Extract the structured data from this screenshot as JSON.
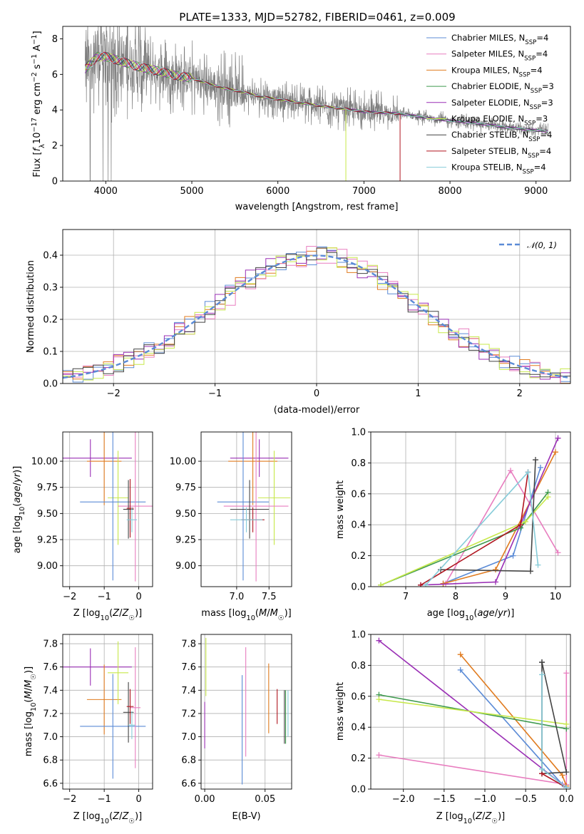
{
  "figure": {
    "title": "PLATE=1333, MJD=52782, FIBERID=0461, z=0.009"
  },
  "colors": {
    "chabrier_miles": "#5b8bd6",
    "salpeter_miles": "#e87dbf",
    "kroupa_miles": "#e07b1f",
    "chabrier_elodie": "#3f9a4f",
    "salpeter_elodie": "#9a2fb5",
    "kroupa_elodie": "#c7e84a",
    "chabrier_stelib": "#444444",
    "salpeter_stelib": "#b0151f",
    "kroupa_stelib": "#86ccd9",
    "data": "#7f7f7f",
    "normal": "#5b8bd6"
  },
  "chart_data": [
    {
      "type": "line",
      "id": "spectrum",
      "title": "PLATE=1333, MJD=52782, FIBERID=0461, z=0.009",
      "xlabel": "wavelength [Angstrom, rest frame]",
      "ylabel": "Flux [f_λ 10^-17 erg cm^-2 s^-1 A^-1]",
      "xlim": [
        3500,
        9400
      ],
      "ylim": [
        0,
        8.7
      ],
      "xticks": [
        4000,
        5000,
        6000,
        7000,
        8000,
        9000
      ],
      "yticks": [
        0,
        2,
        4,
        6,
        8
      ],
      "legend_position": "upper right",
      "data_continuum": {
        "x": [
          3760,
          3900,
          4000,
          4200,
          4400,
          4600,
          4800,
          5000,
          5200,
          5400,
          5600,
          5800,
          6000,
          6200,
          6400,
          6600,
          6800,
          7000,
          7200,
          7400,
          7600,
          7800,
          8000,
          8200,
          8400,
          8600,
          8800,
          9000,
          9140
        ],
        "y": [
          6.3,
          7.0,
          7.0,
          6.7,
          6.4,
          6.2,
          5.95,
          5.8,
          5.45,
          5.2,
          5.0,
          4.75,
          4.6,
          4.45,
          4.3,
          4.15,
          4.05,
          3.9,
          3.85,
          3.8,
          3.65,
          3.5,
          3.4,
          3.3,
          3.2,
          3.05,
          2.95,
          2.85,
          2.8
        ]
      },
      "series": [
        {
          "name": "Chabrier MILES, N_SSP=4",
          "color_key": "chabrier_miles"
        },
        {
          "name": "Salpeter MILES, N_SSP=4",
          "color_key": "salpeter_miles"
        },
        {
          "name": "Kroupa MILES, N_SSP=4",
          "color_key": "kroupa_miles"
        },
        {
          "name": "Chabrier ELODIE, N_SSP=3",
          "color_key": "chabrier_elodie"
        },
        {
          "name": "Salpeter ELODIE, N_SSP=3",
          "color_key": "salpeter_elodie"
        },
        {
          "name": "Kroupa ELODIE, N_SSP=3",
          "color_key": "kroupa_elodie"
        },
        {
          "name": "Chabrier STELIB, N_SSP=4",
          "color_key": "chabrier_stelib"
        },
        {
          "name": "Salpeter STELIB, N_SSP=4",
          "color_key": "salpeter_stelib"
        },
        {
          "name": "Kroupa STELIB, N_SSP=4",
          "color_key": "kroupa_stelib"
        }
      ]
    },
    {
      "type": "line",
      "id": "residuals",
      "xlabel": "(data-model)/error",
      "ylabel": "Normed distribution",
      "xlim": [
        -2.5,
        2.5
      ],
      "ylim": [
        0,
        0.48
      ],
      "xticks": [
        -2,
        -1,
        0,
        1,
        2
      ],
      "yticks": [
        0.0,
        0.1,
        0.2,
        0.3,
        0.4
      ],
      "grid": true,
      "legend": "𝒩(0, 1)",
      "legend_position": "upper right",
      "bin_width": 0.1,
      "series": [
        {
          "name": "Chabrier MILES",
          "color_key": "chabrier_miles",
          "offset": 0.0
        },
        {
          "name": "Kroupa MILES",
          "color_key": "kroupa_miles",
          "offset": 0.02
        },
        {
          "name": "Salpeter MILES",
          "color_key": "salpeter_miles",
          "offset": -0.02
        },
        {
          "name": "Salpeter ELODIE",
          "color_key": "salpeter_elodie",
          "offset": 0.015
        },
        {
          "name": "Kroupa ELODIE",
          "color_key": "kroupa_elodie",
          "offset": -0.012
        },
        {
          "name": "Chabrier STELIB",
          "color_key": "chabrier_stelib",
          "offset": 0.008
        }
      ]
    },
    {
      "type": "scatter",
      "id": "age_vs_Z",
      "xlabel": "Z [log10(Z/Z☉)]",
      "ylabel": "age [log10(age/yr)]",
      "xlim": [
        -2.2,
        0.4
      ],
      "ylim": [
        8.8,
        10.28
      ],
      "xticks": [
        -2,
        -1,
        0
      ],
      "yticks": [
        9.0,
        9.25,
        9.5,
        9.75,
        10.0
      ],
      "grid": true,
      "points": [
        {
          "color_key": "salpeter_elodie",
          "x": -1.4,
          "xerr": 1.2,
          "y": 10.03,
          "yerr": 0.18
        },
        {
          "color_key": "kroupa_miles",
          "x": -1.0,
          "xerr": 0.5,
          "y": 10.0,
          "yerr": 0.42
        },
        {
          "color_key": "kroupa_elodie",
          "x": -0.6,
          "xerr": 0.3,
          "y": 9.65,
          "yerr": 0.45
        },
        {
          "color_key": "chabrier_miles",
          "x": -0.75,
          "xerr": 0.95,
          "y": 9.61,
          "yerr": 0.75
        },
        {
          "color_key": "salpeter_miles",
          "x": -0.1,
          "xerr": 0.5,
          "y": 9.57,
          "yerr": 0.72
        },
        {
          "color_key": "chabrier_stelib",
          "x": -0.3,
          "xerr": 0.15,
          "y": 9.54,
          "yerr": 0.28
        },
        {
          "color_key": "salpeter_stelib",
          "x": -0.25,
          "xerr": 0.1,
          "y": 9.55,
          "yerr": 0.28
        },
        {
          "color_key": "kroupa_stelib",
          "x": -0.2,
          "xerr": 0.15,
          "y": 9.44,
          "yerr": 0.12
        }
      ]
    },
    {
      "type": "scatter",
      "id": "age_vs_mass",
      "xlabel": "mass [log10(M/M☉)]",
      "ylabel": "",
      "xlim": [
        6.45,
        7.85
      ],
      "ylim": [
        8.8,
        10.28
      ],
      "xticks": [
        7.0,
        7.5
      ],
      "yticks": [
        9.0,
        9.25,
        9.5,
        9.75,
        10.0
      ],
      "grid": true,
      "points": [
        {
          "color_key": "salpeter_elodie",
          "x": 7.35,
          "xerr": 0.45,
          "y": 10.03,
          "yerr": 0.18
        },
        {
          "color_key": "kroupa_miles",
          "x": 7.25,
          "xerr": 0.38,
          "y": 10.0,
          "yerr": 0.42
        },
        {
          "color_key": "kroupa_elodie",
          "x": 7.58,
          "xerr": 0.25,
          "y": 9.65,
          "yerr": 0.45
        },
        {
          "color_key": "chabrier_miles",
          "x": 7.1,
          "xerr": 0.4,
          "y": 9.61,
          "yerr": 0.75
        },
        {
          "color_key": "salpeter_miles",
          "x": 7.3,
          "xerr": 0.5,
          "y": 9.57,
          "yerr": 0.72
        },
        {
          "color_key": "chabrier_stelib",
          "x": 7.2,
          "xerr": 0.3,
          "y": 9.54,
          "yerr": 0.28
        },
        {
          "color_key": "salpeter_stelib",
          "x": 7.25,
          "xerr": 0.18,
          "y": 9.44,
          "yerr": 0.12
        },
        {
          "color_key": "kroupa_stelib",
          "x": 7.15,
          "xerr": 0.25,
          "y": 9.44,
          "yerr": 0.12
        }
      ]
    },
    {
      "type": "line",
      "id": "mass_weight_vs_age",
      "xlabel": "age [log10(age/yr)]",
      "ylabel": "mass weight",
      "xlim": [
        6.3,
        10.3
      ],
      "ylim": [
        0,
        1.0
      ],
      "xticks": [
        7,
        8,
        9,
        10
      ],
      "yticks": [
        0.0,
        0.2,
        0.4,
        0.6,
        0.8,
        1.0
      ],
      "grid": true,
      "series": [
        {
          "name": "Chabrier MILES",
          "color_key": "chabrier_miles",
          "x": [
            7.75,
            9.15,
            9.7
          ],
          "y": [
            0.02,
            0.2,
            0.77
          ]
        },
        {
          "name": "Salpeter MILES",
          "color_key": "salpeter_miles",
          "x": [
            7.8,
            9.1,
            10.05
          ],
          "y": [
            0.02,
            0.75,
            0.22
          ]
        },
        {
          "name": "Kroupa MILES",
          "color_key": "kroupa_miles",
          "x": [
            7.75,
            8.8,
            10.0
          ],
          "y": [
            0.02,
            0.11,
            0.87
          ]
        },
        {
          "name": "Chabrier ELODIE",
          "color_key": "chabrier_elodie",
          "x": [
            6.5,
            9.3,
            9.85
          ],
          "y": [
            0.01,
            0.38,
            0.61
          ]
        },
        {
          "name": "Salpeter ELODIE",
          "color_key": "salpeter_elodie",
          "x": [
            7.3,
            8.8,
            10.05
          ],
          "y": [
            0.01,
            0.03,
            0.96
          ]
        },
        {
          "name": "Kroupa ELODIE",
          "color_key": "kroupa_elodie",
          "x": [
            6.5,
            9.4,
            9.85
          ],
          "y": [
            0.01,
            0.42,
            0.58
          ]
        },
        {
          "name": "Chabrier STELIB",
          "color_key": "chabrier_stelib",
          "x": [
            7.7,
            9.5,
            9.6
          ],
          "y": [
            0.11,
            0.1,
            0.82
          ]
        },
        {
          "name": "Salpeter STELIB",
          "color_key": "salpeter_stelib",
          "x": [
            7.3,
            9.3,
            9.45
          ],
          "y": [
            0.01,
            0.4,
            0.74
          ]
        },
        {
          "name": "Kroupa STELIB",
          "color_key": "kroupa_stelib",
          "x": [
            7.4,
            9.45,
            9.65
          ],
          "y": [
            0.01,
            0.74,
            0.14
          ]
        }
      ]
    },
    {
      "type": "scatter",
      "id": "mass_vs_Z",
      "xlabel": "Z [log10(Z/Z☉)]",
      "ylabel": "mass [log10(M/M☉)]",
      "xlim": [
        -2.2,
        0.4
      ],
      "ylim": [
        6.55,
        7.88
      ],
      "xticks": [
        -2,
        -1,
        0
      ],
      "yticks": [
        6.6,
        6.8,
        7.0,
        7.2,
        7.4,
        7.6,
        7.8
      ],
      "grid": true,
      "points": [
        {
          "color_key": "salpeter_elodie",
          "x": -1.4,
          "xerr": 1.2,
          "y": 7.6,
          "yerr": 0.16
        },
        {
          "color_key": "kroupa_miles",
          "x": -1.0,
          "xerr": 0.5,
          "y": 7.32,
          "yerr": 0.3
        },
        {
          "color_key": "kroupa_elodie",
          "x": -0.6,
          "xerr": 0.3,
          "y": 7.55,
          "yerr": 0.27
        },
        {
          "color_key": "chabrier_miles",
          "x": -0.75,
          "xerr": 0.95,
          "y": 7.09,
          "yerr": 0.45
        },
        {
          "color_key": "salpeter_miles",
          "x": -0.1,
          "xerr": 0.15,
          "y": 7.25,
          "yerr": 0.52
        },
        {
          "color_key": "chabrier_stelib",
          "x": -0.3,
          "xerr": 0.15,
          "y": 7.21,
          "yerr": 0.26
        },
        {
          "color_key": "salpeter_stelib",
          "x": -0.25,
          "xerr": 0.1,
          "y": 7.26,
          "yerr": 0.15
        },
        {
          "color_key": "kroupa_stelib",
          "x": -0.2,
          "xerr": 0.1,
          "y": 7.1,
          "yerr": 0.12
        }
      ]
    },
    {
      "type": "scatter",
      "id": "mass_vs_ebv",
      "xlabel": "E(B-V)",
      "ylabel": "",
      "xlim": [
        -0.003,
        0.072
      ],
      "ylim": [
        6.55,
        7.88
      ],
      "xticks": [
        0.0,
        0.05
      ],
      "yticks": [
        6.6,
        6.8,
        7.0,
        7.2,
        7.4,
        7.6,
        7.8
      ],
      "grid": true,
      "points": [
        {
          "color_key": "kroupa_elodie",
          "x": 0.001,
          "xerr": 0,
          "y": 7.6,
          "yerr": 0.25
        },
        {
          "color_key": "salpeter_elodie",
          "x": 0.0,
          "xerr": 0,
          "y": 7.1,
          "yerr": 0.2
        },
        {
          "color_key": "chabrier_miles",
          "x": 0.031,
          "xerr": 0,
          "y": 7.06,
          "yerr": 0.47
        },
        {
          "color_key": "salpeter_miles",
          "x": 0.034,
          "xerr": 0,
          "y": 7.3,
          "yerr": 0.47
        },
        {
          "color_key": "kroupa_miles",
          "x": 0.053,
          "xerr": 0,
          "y": 7.33,
          "yerr": 0.3
        },
        {
          "color_key": "salpeter_stelib",
          "x": 0.06,
          "xerr": 0,
          "y": 7.26,
          "yerr": 0.15
        },
        {
          "color_key": "chabrier_stelib",
          "x": 0.066,
          "xerr": 0,
          "y": 7.17,
          "yerr": 0.23
        },
        {
          "color_key": "chabrier_elodie",
          "x": 0.067,
          "xerr": 0,
          "y": 7.17,
          "yerr": 0.23
        },
        {
          "color_key": "kroupa_stelib",
          "x": 0.069,
          "xerr": 0,
          "y": 7.2,
          "yerr": 0.2
        }
      ]
    },
    {
      "type": "line",
      "id": "mass_weight_vs_Z",
      "xlabel": "Z [log10(Z/Z☉)]",
      "ylabel": "mass weight",
      "xlim": [
        -2.4,
        0.05
      ],
      "ylim": [
        0,
        1.0
      ],
      "xticks": [
        -2.0,
        -1.5,
        -1.0,
        -0.5,
        0.0
      ],
      "yticks": [
        0.0,
        0.2,
        0.4,
        0.6,
        0.8,
        1.0
      ],
      "grid": true,
      "series": [
        {
          "name": "Chabrier MILES",
          "color_key": "chabrier_miles",
          "x": [
            -1.3,
            -0.05,
            0.0
          ],
          "y": [
            0.77,
            0.03,
            0.01
          ]
        },
        {
          "name": "Salpeter MILES",
          "color_key": "salpeter_miles",
          "x": [
            -2.3,
            0.0,
            0.0
          ],
          "y": [
            0.22,
            0.03,
            0.75
          ]
        },
        {
          "name": "Kroupa MILES",
          "color_key": "kroupa_miles",
          "x": [
            -1.3,
            -0.05,
            0.0
          ],
          "y": [
            0.87,
            0.09,
            0.02
          ]
        },
        {
          "name": "Chabrier ELODIE",
          "color_key": "chabrier_elodie",
          "x": [
            -2.3,
            0.0
          ],
          "y": [
            0.61,
            0.39
          ]
        },
        {
          "name": "Salpeter ELODIE",
          "color_key": "salpeter_elodie",
          "x": [
            -2.3,
            0.0
          ],
          "y": [
            0.96,
            0.01
          ]
        },
        {
          "name": "Kroupa ELODIE",
          "color_key": "kroupa_elodie",
          "x": [
            -2.3,
            0.0
          ],
          "y": [
            0.58,
            0.42
          ]
        },
        {
          "name": "Chabrier STELIB",
          "color_key": "chabrier_stelib",
          "x": [
            -0.3,
            -0.3,
            0.0,
            -0.3
          ],
          "y": [
            0.82,
            0.1,
            0.11,
            0.82
          ]
        },
        {
          "name": "Salpeter STELIB",
          "color_key": "salpeter_stelib",
          "x": [
            -0.3,
            0.0
          ],
          "y": [
            0.1,
            0.01
          ]
        },
        {
          "name": "Kroupa STELIB",
          "color_key": "kroupa_stelib",
          "x": [
            -0.3,
            -0.3,
            0.0
          ],
          "y": [
            0.74,
            0.13,
            0.01
          ]
        }
      ]
    }
  ]
}
